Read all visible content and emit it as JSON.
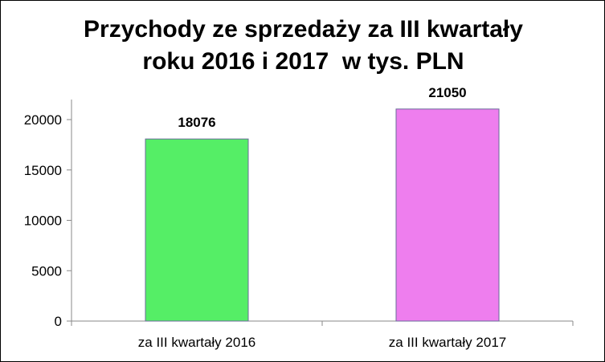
{
  "chart_data": {
    "type": "bar",
    "title_lines": [
      "Przychody ze sprzedaży za III kwartały",
      "roku 2016 i 2017  w tys. PLN"
    ],
    "xlabel": "",
    "ylabel": "",
    "categories": [
      "za III kwartały 2016",
      "za III kwartały 2017"
    ],
    "values": [
      18076,
      21050
    ],
    "data_labels": [
      "18076",
      "21050"
    ],
    "bar_colors": [
      "#55EE66",
      "#EE7EEE"
    ],
    "ylim": [
      0,
      25000
    ],
    "yticks": [
      0,
      5000,
      10000,
      15000,
      20000
    ],
    "ytick_labels": [
      "0",
      "5000",
      "10000",
      "15000",
      "20000"
    ],
    "grid": false,
    "legend": "none"
  }
}
